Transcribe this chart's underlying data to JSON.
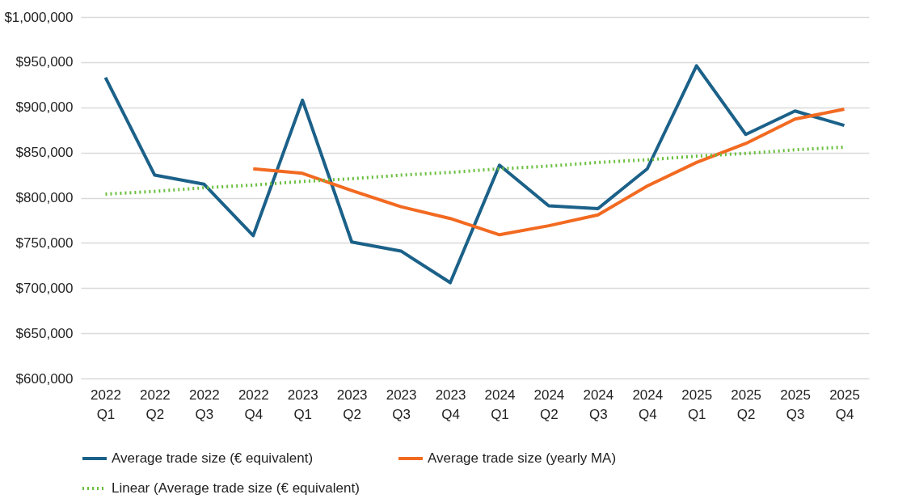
{
  "chart_data": {
    "type": "line",
    "categories": [
      "2022 Q1",
      "2022 Q2",
      "2022 Q3",
      "2022 Q4",
      "2023 Q1",
      "2023 Q2",
      "2023 Q3",
      "2023 Q4",
      "2024 Q1",
      "2024 Q2",
      "2024 Q3",
      "2024 Q4",
      "2025 Q1",
      "2025 Q2",
      "2025 Q3",
      "2025 Q4"
    ],
    "series": [
      {
        "name": "Average trade size (€ equivalent)",
        "color": "#1b6189",
        "line_style": "solid",
        "values": [
          933000,
          825000,
          815000,
          758000,
          908000,
          751000,
          741000,
          706000,
          836000,
          791000,
          788000,
          832000,
          946000,
          870000,
          896000,
          880000
        ]
      },
      {
        "name": "Average trade size (yearly MA)",
        "color": "#f26a21",
        "line_style": "solid",
        "values": [
          null,
          null,
          null,
          832000,
          827000,
          808000,
          790000,
          777000,
          759000,
          769000,
          781000,
          813000,
          839000,
          860000,
          887000,
          898000
        ]
      },
      {
        "name": "Linear (Average trade size (€ equivalent)",
        "color": "#6bbf3f",
        "line_style": "dotted",
        "values": [
          804000,
          807000,
          811000,
          814000,
          818000,
          821000,
          825000,
          828000,
          832000,
          835000,
          839000,
          842000,
          846000,
          849000,
          853000,
          856000
        ]
      }
    ],
    "ylim": [
      600000,
      1000000
    ],
    "yticks": [
      {
        "value": 600000,
        "label": "$600,000"
      },
      {
        "value": 650000,
        "label": "$650,000"
      },
      {
        "value": 700000,
        "label": "$700,000"
      },
      {
        "value": 750000,
        "label": "$750,000"
      },
      {
        "value": 800000,
        "label": "$800,000"
      },
      {
        "value": 850000,
        "label": "$850,000"
      },
      {
        "value": 900000,
        "label": "$900,000"
      },
      {
        "value": 950000,
        "label": "$950,000"
      },
      {
        "value": 1000000,
        "label": "$1,000,000"
      }
    ],
    "grid": "y",
    "legend": "bottom",
    "marker": "none"
  }
}
